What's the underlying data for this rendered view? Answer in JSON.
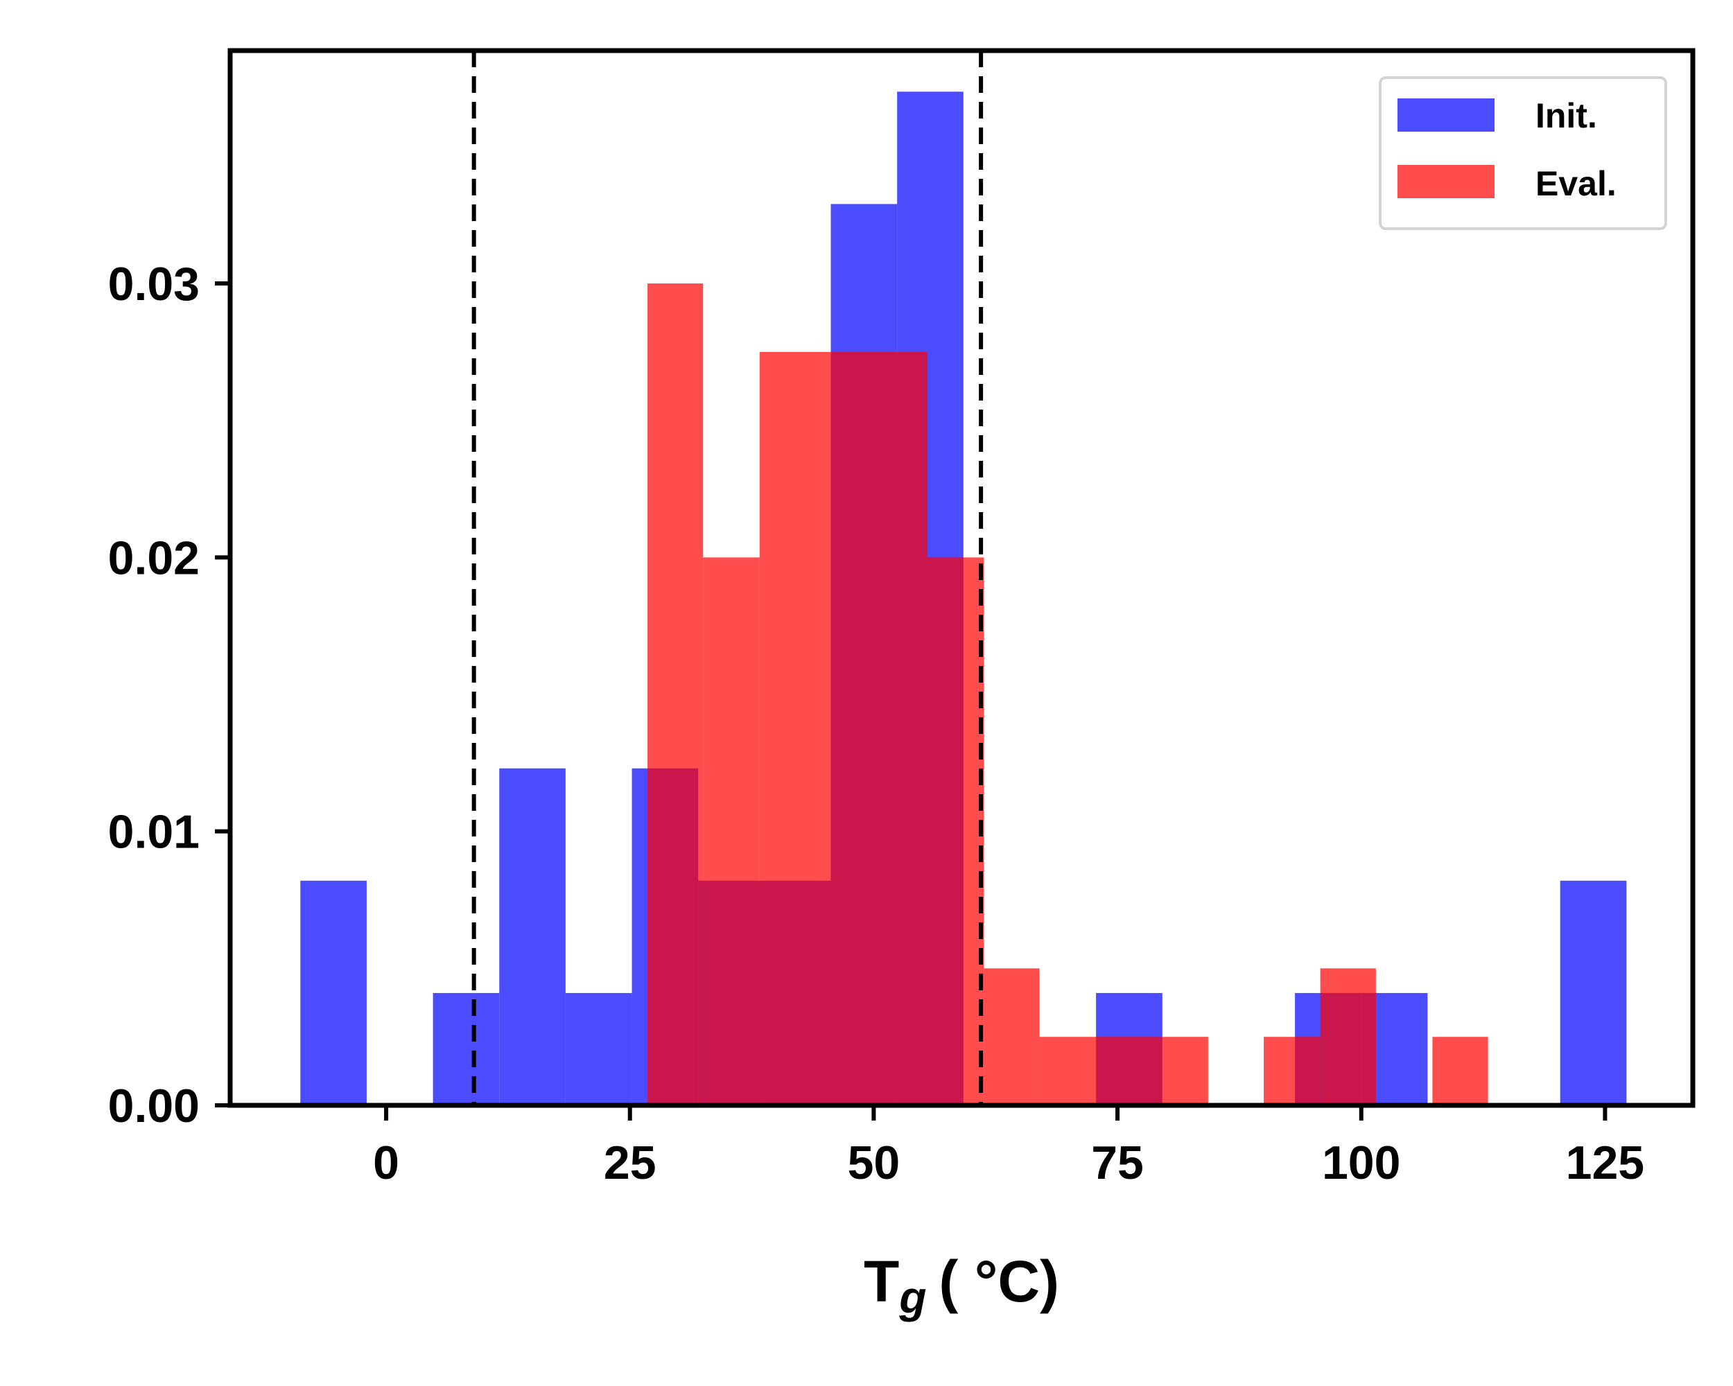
{
  "chart_data": {
    "type": "bar",
    "subtype": "overlapping-histogram",
    "xlabel": "T",
    "xlabel_sub": "g",
    "xlabel_unit": "( °C)",
    "ylabel": "",
    "xlim": [
      -16,
      134
    ],
    "ylim": [
      0,
      0.0385
    ],
    "xticks": [
      0,
      25,
      50,
      75,
      100,
      125
    ],
    "yticks": [
      0.0,
      0.01,
      0.02,
      0.03
    ],
    "ytick_labels": [
      "0.00",
      "0.01",
      "0.02",
      "0.03"
    ],
    "grid": false,
    "legend_position": "top-right",
    "vlines": [
      9,
      61
    ],
    "series": [
      {
        "name": "Init.",
        "color": "#0000ff",
        "opacity": 0.7,
        "bins": [
          {
            "x0": -8.8,
            "x1": -2.0,
            "value": 0.0082
          },
          {
            "x0": 4.8,
            "x1": 11.6,
            "value": 0.0041
          },
          {
            "x0": 11.6,
            "x1": 18.4,
            "value": 0.0123
          },
          {
            "x0": 18.4,
            "x1": 25.2,
            "value": 0.0041
          },
          {
            "x0": 25.2,
            "x1": 32.0,
            "value": 0.0123
          },
          {
            "x0": 32.0,
            "x1": 38.8,
            "value": 0.0082
          },
          {
            "x0": 38.8,
            "x1": 45.6,
            "value": 0.0082
          },
          {
            "x0": 45.6,
            "x1": 52.4,
            "value": 0.0329
          },
          {
            "x0": 52.4,
            "x1": 59.2,
            "value": 0.037
          },
          {
            "x0": 72.8,
            "x1": 79.6,
            "value": 0.0041
          },
          {
            "x0": 93.2,
            "x1": 100.0,
            "value": 0.0041
          },
          {
            "x0": 100.0,
            "x1": 106.8,
            "value": 0.0041
          },
          {
            "x0": 120.4,
            "x1": 127.2,
            "value": 0.0082
          }
        ]
      },
      {
        "name": "Eval.",
        "color": "#ff0000",
        "opacity": 0.7,
        "bins": [
          {
            "x0": 26.8,
            "x1": 32.5,
            "value": 0.03
          },
          {
            "x0": 32.5,
            "x1": 38.3,
            "value": 0.02
          },
          {
            "x0": 38.3,
            "x1": 44.0,
            "value": 0.0275
          },
          {
            "x0": 44.0,
            "x1": 49.8,
            "value": 0.0275
          },
          {
            "x0": 49.8,
            "x1": 55.5,
            "value": 0.0275
          },
          {
            "x0": 55.5,
            "x1": 61.3,
            "value": 0.02
          },
          {
            "x0": 61.3,
            "x1": 67.0,
            "value": 0.005
          },
          {
            "x0": 67.0,
            "x1": 72.8,
            "value": 0.0025
          },
          {
            "x0": 72.8,
            "x1": 78.5,
            "value": 0.0025
          },
          {
            "x0": 78.5,
            "x1": 84.3,
            "value": 0.0025
          },
          {
            "x0": 90.0,
            "x1": 95.8,
            "value": 0.0025
          },
          {
            "x0": 95.8,
            "x1": 101.5,
            "value": 0.005
          },
          {
            "x0": 107.3,
            "x1": 113.0,
            "value": 0.0025
          }
        ]
      }
    ]
  }
}
